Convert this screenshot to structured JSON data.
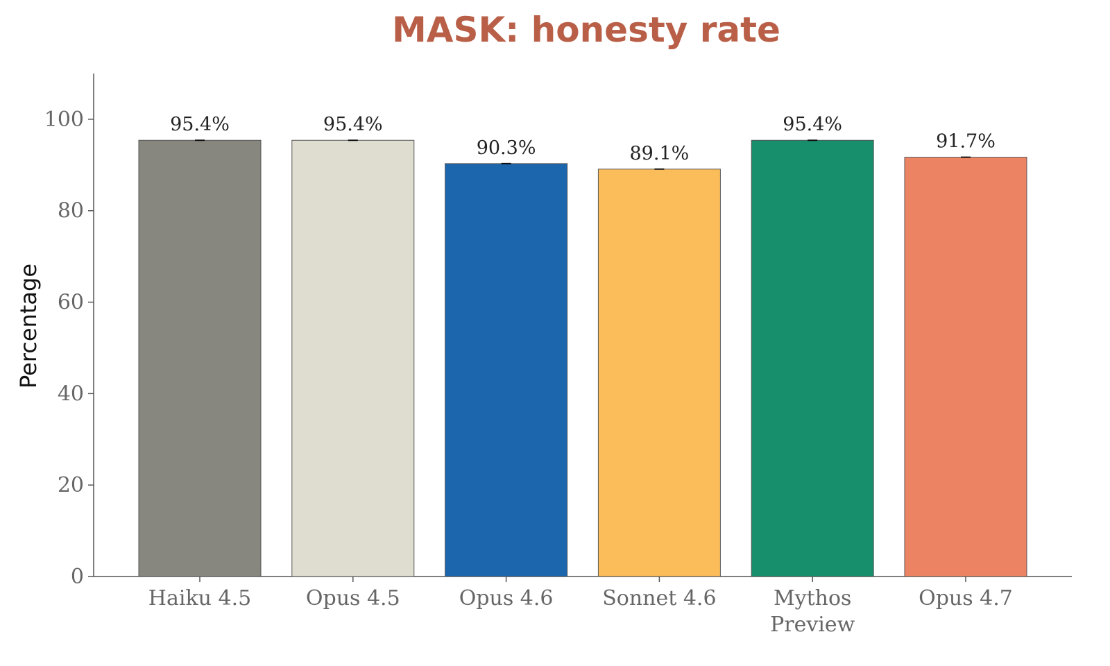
{
  "chart_data": {
    "type": "bar",
    "title": "MASK: honesty rate",
    "xlabel": "",
    "ylabel": "Percentage",
    "ylim": [
      0,
      110
    ],
    "yticks": [
      0,
      20,
      40,
      60,
      80,
      100
    ],
    "grid": false,
    "categories": [
      "Haiku 4.5",
      "Opus 4.5",
      "Opus 4.6",
      "Sonnet 4.6",
      "Mythos Preview",
      "Opus 4.7"
    ],
    "category_lines": [
      [
        "Haiku 4.5"
      ],
      [
        "Opus 4.5"
      ],
      [
        "Opus 4.6"
      ],
      [
        "Sonnet 4.6"
      ],
      [
        "Mythos",
        "Preview"
      ],
      [
        "Opus 4.7"
      ]
    ],
    "values": [
      95.4,
      95.4,
      90.3,
      89.1,
      95.4,
      91.7
    ],
    "value_labels": [
      "95.4%",
      "95.4%",
      "90.3%",
      "89.1%",
      "95.4%",
      "91.7%"
    ],
    "colors": [
      "#878780",
      "#dfdcd0",
      "#1c66ae",
      "#fabd5a",
      "#178f6c",
      "#ec8463"
    ],
    "title_color": "#b95f48"
  }
}
